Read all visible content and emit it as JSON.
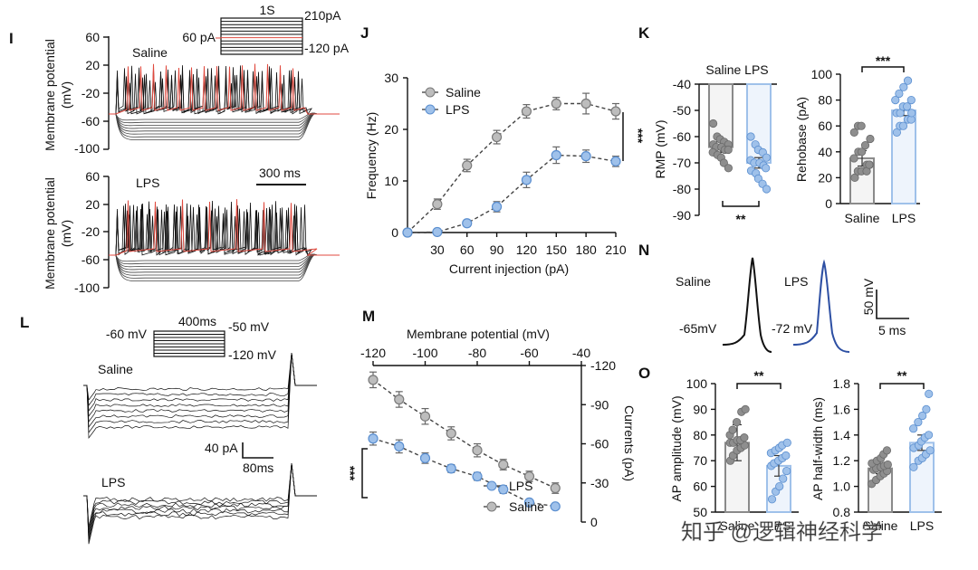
{
  "colors": {
    "saline": "#bdbdbd",
    "saline_dark": "#7a7a7a",
    "lps": "#9fc1ea",
    "lps_edge": "#5b8fd0",
    "trace_black": "#111111",
    "trace_red": "#e04a3f",
    "trace_blue": "#2d4fa3"
  },
  "panel_I": {
    "letter": "I",
    "ylabel_line1": "Membrane potential",
    "ylabel_line2": "(mV)",
    "ticks": [
      "60",
      "20",
      "-20",
      "-60",
      "-100"
    ],
    "saline_label": "Saline",
    "lps_label": "LPS",
    "scale_label": "300 ms",
    "protocol": {
      "duration": "1S",
      "top": "210pA",
      "mid": "60 pA",
      "bottom": "-120 pA"
    }
  },
  "panel_L": {
    "letter": "L",
    "saline_label": "Saline",
    "lps_label": "LPS",
    "scale_y": "40 pA",
    "scale_x": "80ms",
    "protocol": {
      "duration": "400ms",
      "hold": "-60 mV",
      "top": "-50 mV",
      "bottom": "-120 mV"
    }
  },
  "panel_N": {
    "letter": "N",
    "saline_label": "Saline",
    "lps_label": "LPS",
    "saline_rmp": "-65mV",
    "lps_rmp": "-72 mV",
    "scale_y": "50 mV",
    "scale_x": "5 ms"
  },
  "chart_data": [
    {
      "id": "J",
      "type": "line",
      "letter": "J",
      "xlabel": "Current injection (pA)",
      "ylabel": "Frequency (Hz)",
      "x": [
        0,
        30,
        60,
        90,
        120,
        150,
        180,
        210
      ],
      "xticks": [
        "30",
        "60",
        "90",
        "120",
        "150",
        "180",
        "210"
      ],
      "yticks": [
        "0",
        "10",
        "20",
        "30"
      ],
      "xlim": [
        0,
        210
      ],
      "ylim": [
        0,
        30
      ],
      "series": [
        {
          "name": "Saline",
          "values": [
            0,
            5.5,
            13,
            18.5,
            23.5,
            25,
            25,
            23.5
          ],
          "err": [
            0,
            1,
            1.2,
            1.3,
            1.3,
            1.2,
            2,
            1.5
          ]
        },
        {
          "name": "LPS",
          "values": [
            0,
            0.1,
            1.8,
            5,
            10.2,
            15,
            14.8,
            13.8
          ],
          "err": [
            0,
            0.3,
            0.6,
            1,
            1.5,
            1.6,
            1.2,
            1
          ]
        }
      ],
      "significance": "***",
      "legend": "top-left"
    },
    {
      "id": "M",
      "type": "line",
      "letter": "M",
      "xlabel": "Membrane potential (mV)",
      "ylabel": "Currents (pA)",
      "x": [
        -120,
        -110,
        -100,
        -90,
        -80,
        -70,
        -60,
        -50
      ],
      "xticks": [
        "-120",
        "-100",
        "-80",
        "-60",
        "-40"
      ],
      "yticks": [
        "0",
        "-30",
        "-60",
        "-90",
        "-120"
      ],
      "xlim": [
        -120,
        -40
      ],
      "ylim": [
        -120,
        0
      ],
      "series": [
        {
          "name": "LPS",
          "values": [
            -64,
            -58,
            -49,
            -41,
            -35,
            -25,
            -15,
            -12
          ],
          "err": [
            5,
            5,
            4,
            3,
            3,
            3,
            2,
            2
          ]
        },
        {
          "name": "Saline",
          "values": [
            -109,
            -94,
            -81,
            -68,
            -55,
            -44,
            -35,
            -26
          ],
          "err": [
            6,
            6,
            6,
            5,
            5,
            4,
            4,
            4
          ]
        }
      ],
      "significance": "***",
      "legend": "bottom-right"
    },
    {
      "id": "K1",
      "type": "bar",
      "letter": "K",
      "ylabel": "RMP (mV)",
      "categories": [
        "Saline",
        "LPS"
      ],
      "category_header": "Saline LPS",
      "yticks": [
        "-40",
        "-50",
        "-60",
        "-70",
        "-80",
        "-90"
      ],
      "ylim": [
        -90,
        -40
      ],
      "values": [
        -64,
        -70
      ],
      "err": [
        2,
        2
      ],
      "points": [
        [
          -55,
          -60,
          -61,
          -62,
          -63,
          -63,
          -64,
          -64,
          -65,
          -65,
          -66,
          -67,
          -68,
          -70,
          -72
        ],
        [
          -60,
          -63,
          -65,
          -66,
          -68,
          -69,
          -70,
          -70,
          -71,
          -72,
          -73,
          -74,
          -76,
          -78,
          -80
        ]
      ],
      "significance": "**"
    },
    {
      "id": "K2",
      "type": "bar",
      "letter": "",
      "ylabel": "Rehobase (pA)",
      "categories": [
        "Saline",
        "LPS"
      ],
      "yticks": [
        "0",
        "20",
        "40",
        "60",
        "80",
        "100"
      ],
      "ylim": [
        0,
        100
      ],
      "values": [
        35,
        72
      ],
      "err": [
        6,
        4
      ],
      "points": [
        [
          20,
          25,
          25,
          30,
          30,
          35,
          40,
          40,
          45,
          50,
          55,
          60,
          60,
          25,
          30
        ],
        [
          55,
          60,
          60,
          65,
          65,
          70,
          70,
          75,
          75,
          80,
          80,
          85,
          90,
          95,
          70
        ]
      ],
      "significance": "***"
    },
    {
      "id": "O1",
      "type": "bar",
      "letter": "O",
      "ylabel": "AP amplitude (mV)",
      "categories": [
        "Saline",
        "LPS"
      ],
      "yticks": [
        "50",
        "60",
        "70",
        "80",
        "90",
        "100"
      ],
      "ylim": [
        50,
        100
      ],
      "values": [
        77,
        68
      ],
      "err": [
        7,
        4
      ],
      "points": [
        [
          70,
          72,
          74,
          75,
          76,
          77,
          77,
          78,
          78,
          79,
          80,
          82,
          85,
          89,
          90
        ],
        [
          55,
          58,
          60,
          63,
          66,
          68,
          69,
          70,
          71,
          72,
          73,
          74,
          75,
          76,
          77
        ]
      ],
      "significance": "**"
    },
    {
      "id": "O2",
      "type": "bar",
      "letter": "",
      "ylabel": "AP half-width (ms)",
      "categories": [
        "Saline",
        "LPS"
      ],
      "yticks": [
        "0.8",
        "1.0",
        "1.2",
        "1.4",
        "1.6",
        "1.8"
      ],
      "ylim": [
        0.8,
        1.8
      ],
      "values": [
        1.14,
        1.34
      ],
      "err": [
        0.04,
        0.06
      ],
      "points": [
        [
          1.02,
          1.05,
          1.08,
          1.1,
          1.12,
          1.13,
          1.14,
          1.15,
          1.16,
          1.17,
          1.18,
          1.2,
          1.22,
          1.25,
          1.28
        ],
        [
          1.15,
          1.2,
          1.22,
          1.25,
          1.28,
          1.3,
          1.32,
          1.35,
          1.38,
          1.4,
          1.45,
          1.5,
          1.55,
          1.6,
          1.72
        ]
      ],
      "significance": "**"
    }
  ],
  "watermark": "知乎 @逻辑神经科学"
}
